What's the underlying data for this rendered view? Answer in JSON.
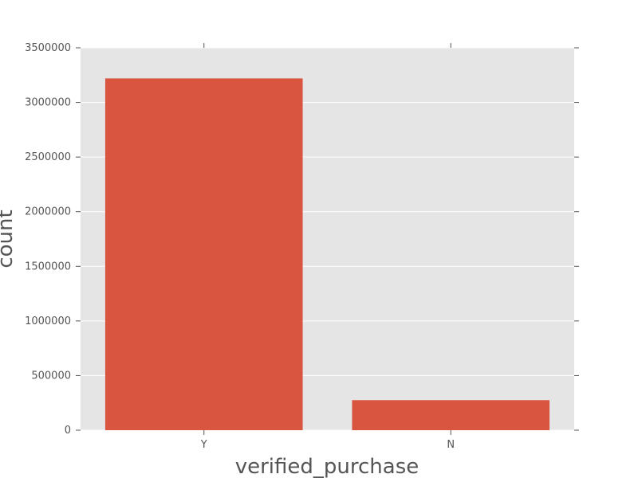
{
  "chart_data": {
    "type": "bar",
    "categories": [
      "Y",
      "N"
    ],
    "values": [
      3220000,
      275000
    ],
    "xlabel": "verified_purchase",
    "ylabel": "count",
    "ylim": [
      0,
      3500000
    ],
    "yticks": [
      "0",
      "500000",
      "1000000",
      "1500000",
      "2000000",
      "2500000",
      "3000000",
      "3500000"
    ],
    "grid": true,
    "colors": {
      "bar": "#d9553f",
      "plot_background": "#e5e5e5",
      "grid": "#ffffff",
      "tick_mark": "#555555"
    }
  }
}
